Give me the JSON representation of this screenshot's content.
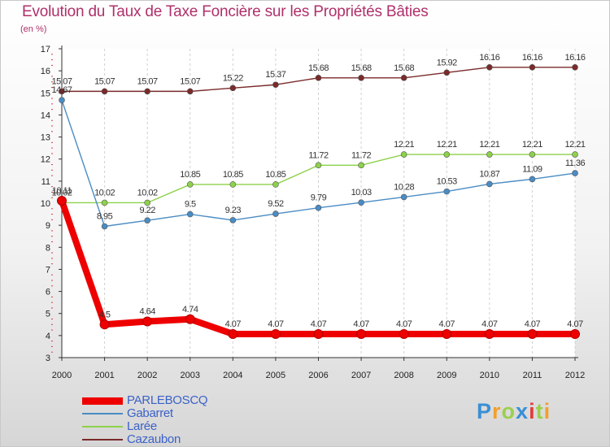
{
  "title": "Evolution du Taux de Taxe Foncière sur les Propriétés Bâties",
  "subtitle": "(en %)",
  "logo": {
    "letters": [
      "P",
      "r",
      "o",
      "x",
      "i",
      "t",
      "i"
    ],
    "colors": [
      "#3a8fd6",
      "#f2a02a",
      "#9ccf4c",
      "#3a8fd6",
      "#e03c3c",
      "#9ccf4c",
      "#f2a02a"
    ]
  },
  "chart_data": {
    "type": "line",
    "title": "Evolution du Taux de Taxe Foncière sur les Propriétés Bâties",
    "ylabel": "(en %)",
    "x": [
      "2000",
      "2001",
      "2002",
      "2003",
      "2004",
      "2005",
      "2006",
      "2007",
      "2008",
      "2009",
      "2010",
      "2011",
      "2012"
    ],
    "ylim": [
      3,
      17
    ],
    "yticks": [
      "3",
      "4",
      "5",
      "6",
      "7",
      "8",
      "9",
      "10",
      "11",
      "12",
      "13",
      "14",
      "15",
      "16",
      "17"
    ],
    "grid": "vertical dashed",
    "legend_position": "bottom-left",
    "series": [
      {
        "name": "PARLEBOSCQ",
        "color": "#ee0000",
        "values": [
          10.11,
          4.5,
          4.64,
          4.74,
          4.07,
          4.07,
          4.07,
          4.07,
          4.07,
          4.07,
          4.07,
          4.07,
          4.07
        ],
        "labels": [
          "10.11",
          "4.5",
          "4.64",
          "4.74",
          "4.07",
          "4.07",
          "4.07",
          "4.07",
          "4.07",
          "4.07",
          "4.07",
          "4.07",
          "4.07"
        ]
      },
      {
        "name": "Gabarret",
        "color": "#4a8cc4",
        "values": [
          14.67,
          8.95,
          9.22,
          9.5,
          9.23,
          9.52,
          9.79,
          10.03,
          10.28,
          10.53,
          10.87,
          11.09,
          11.36
        ],
        "labels": [
          "14.67",
          "8.95",
          "9.22",
          "9.5",
          "9.23",
          "9.52",
          "9.79",
          "10.03",
          "10.28",
          "10.53",
          "10.87",
          "11.09",
          "11.36"
        ]
      },
      {
        "name": "Larée",
        "color": "#8ed14b",
        "values": [
          10.02,
          10.02,
          10.02,
          10.85,
          10.85,
          10.85,
          11.72,
          11.72,
          12.21,
          12.21,
          12.21,
          12.21,
          12.21
        ],
        "labels": [
          "10.02",
          "10.02",
          "10.02",
          "10.85",
          "10.85",
          "10.85",
          "11.72",
          "11.72",
          "12.21",
          "12.21",
          "12.21",
          "12.21",
          "12.21"
        ]
      },
      {
        "name": "Cazaubon",
        "color": "#7a2a2a",
        "values": [
          15.07,
          15.07,
          15.07,
          15.07,
          15.22,
          15.37,
          15.68,
          15.68,
          15.68,
          15.92,
          16.16,
          16.16,
          16.16
        ],
        "labels": [
          "15.07",
          "15.07",
          "15.07",
          "15.07",
          "15.22",
          "15.37",
          "15.68",
          "15.68",
          "15.68",
          "15.92",
          "16.16",
          "16.16",
          "16.16"
        ]
      }
    ]
  }
}
